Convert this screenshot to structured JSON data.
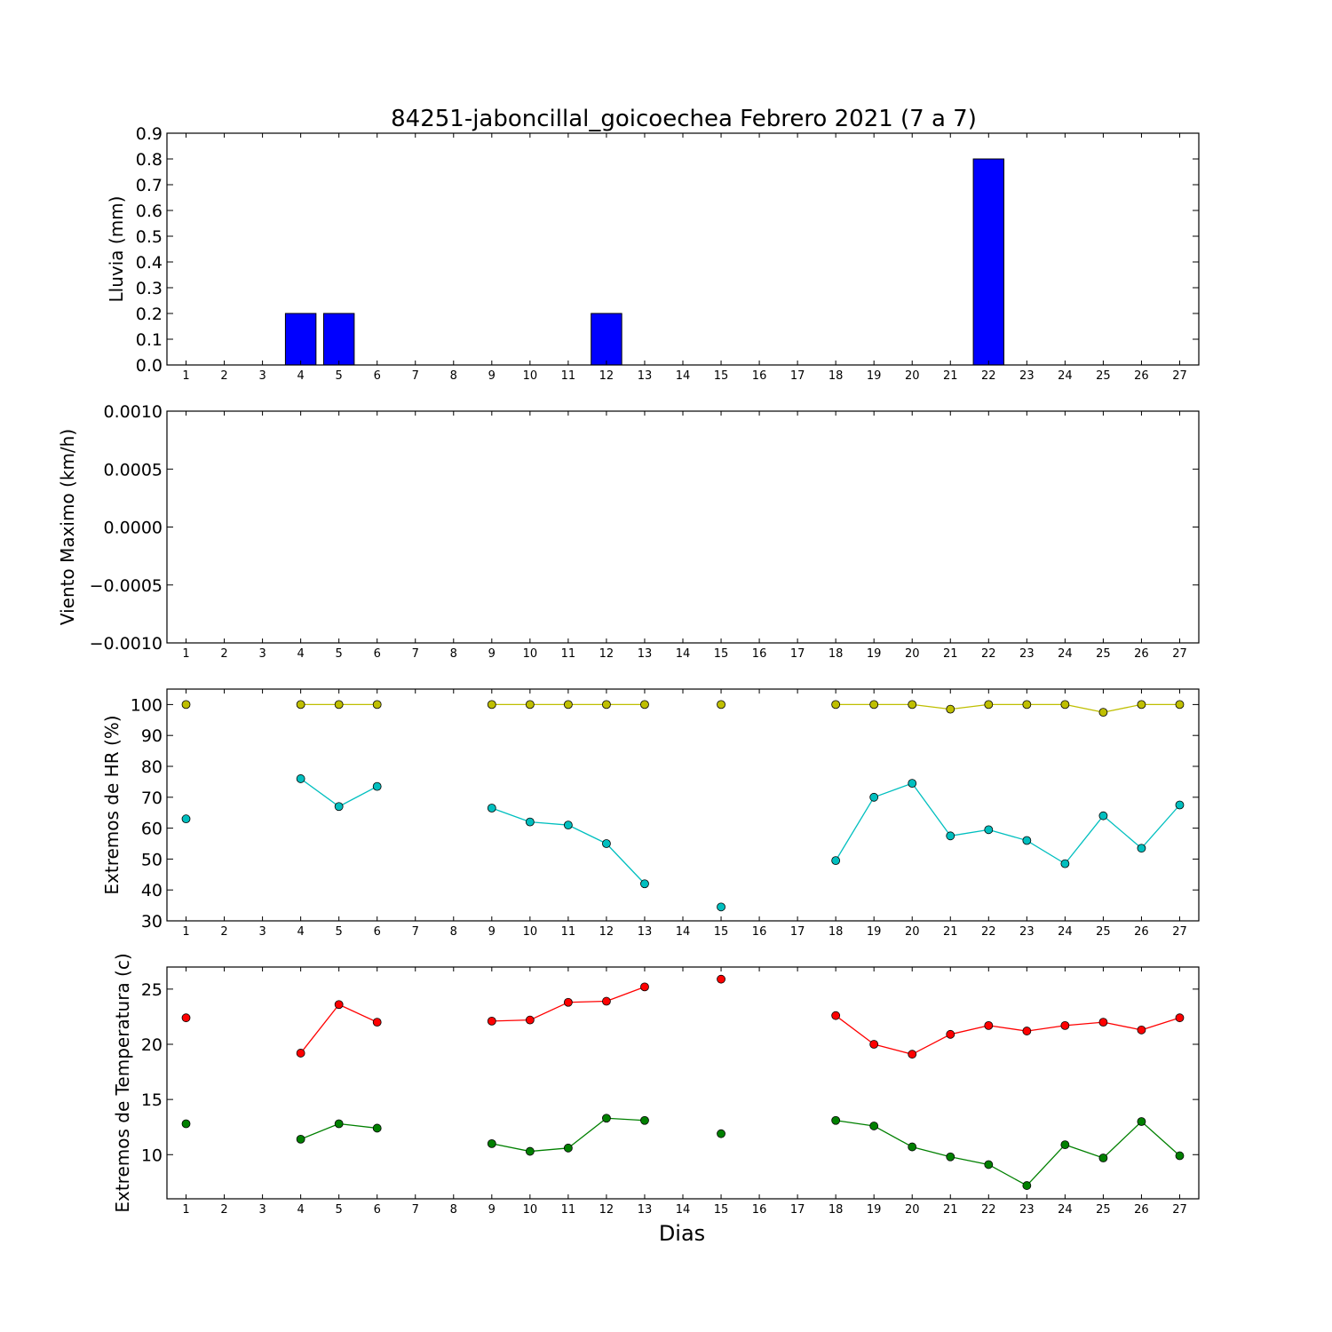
{
  "chart_data": {
    "title": "84251-jaboncillal_goicoechea Febrero 2021  (7 a 7)",
    "xlabel": "Dias",
    "days": [
      1,
      2,
      3,
      4,
      5,
      6,
      7,
      8,
      9,
      10,
      11,
      12,
      13,
      14,
      15,
      16,
      17,
      18,
      19,
      20,
      21,
      22,
      23,
      24,
      25,
      26,
      27
    ],
    "panels": [
      {
        "type": "bar",
        "ylabel": "Lluvia (mm)",
        "ylim": [
          0,
          0.9
        ],
        "yticks": [
          "0.0",
          "0.1",
          "0.2",
          "0.3",
          "0.4",
          "0.5",
          "0.6",
          "0.7",
          "0.8",
          "0.9"
        ],
        "series": [
          {
            "color": "#0000ff",
            "values": [
              0,
              0,
              0,
              0.2,
              0.2,
              0,
              0,
              0,
              0,
              0,
              0,
              0.2,
              0,
              0,
              0,
              0,
              0,
              0,
              0,
              0,
              0,
              0.8,
              0,
              0,
              0,
              0,
              0
            ]
          }
        ]
      },
      {
        "type": "line",
        "ylabel": "Viento Maximo (km/h)",
        "ylim": [
          -0.001,
          0.001
        ],
        "yticks": [
          "−0.0010",
          "−0.0005",
          "0.0000",
          "0.0005",
          "0.0010"
        ],
        "series": []
      },
      {
        "type": "line",
        "ylabel": "Extremos de HR (%)",
        "ylim": [
          30,
          105
        ],
        "yticks": [
          "30",
          "40",
          "50",
          "60",
          "70",
          "80",
          "90",
          "100"
        ],
        "series": [
          {
            "color": "#bfbf00",
            "values": [
              100,
              null,
              null,
              100,
              100,
              100,
              null,
              null,
              100,
              100,
              100,
              100,
              100,
              null,
              100,
              null,
              null,
              100,
              100,
              100,
              98.5,
              100,
              100,
              100,
              97.5,
              100,
              100
            ]
          },
          {
            "color": "#00bfbf",
            "values": [
              63,
              null,
              null,
              76,
              67,
              73.5,
              null,
              null,
              66.5,
              62,
              61,
              55,
              42,
              null,
              34.5,
              null,
              null,
              49.5,
              70,
              74.5,
              57.5,
              59.5,
              56,
              48.5,
              64,
              53.5,
              67.5
            ]
          }
        ]
      },
      {
        "type": "line",
        "ylabel": "Extremos de Temperatura (c)",
        "ylim": [
          6,
          27
        ],
        "yticks": [
          "10",
          "15",
          "20",
          "25"
        ],
        "series": [
          {
            "color": "#ff0000",
            "values": [
              22.4,
              null,
              null,
              19.2,
              23.6,
              22,
              null,
              null,
              22.1,
              22.2,
              23.8,
              23.9,
              25.2,
              null,
              25.9,
              null,
              null,
              22.6,
              20,
              19.1,
              20.9,
              21.7,
              21.2,
              21.7,
              22,
              21.3,
              22.4
            ]
          },
          {
            "color": "#008000",
            "values": [
              12.8,
              null,
              null,
              11.4,
              12.8,
              12.4,
              null,
              null,
              11,
              10.3,
              10.6,
              13.3,
              13.1,
              null,
              11.9,
              null,
              null,
              13.1,
              12.6,
              10.7,
              9.8,
              9.1,
              7.2,
              10.9,
              9.7,
              13,
              9.9
            ]
          }
        ]
      }
    ]
  }
}
